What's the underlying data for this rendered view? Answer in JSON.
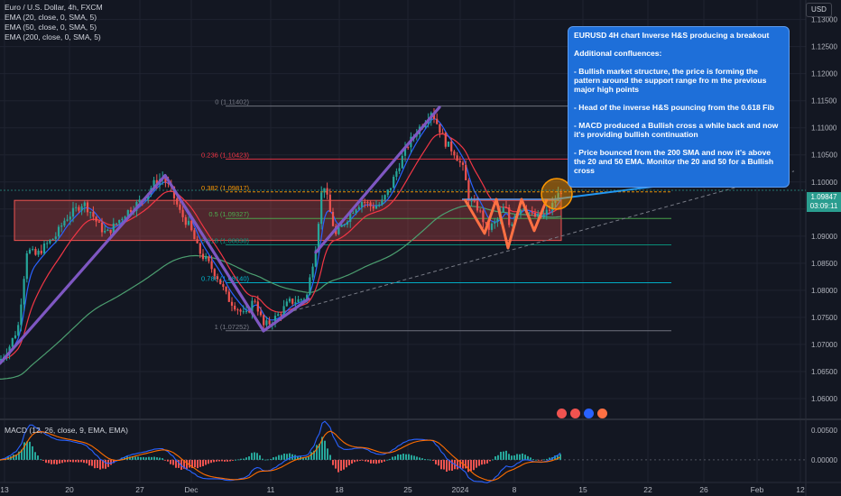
{
  "symbol_title": "Euro / U.S. Dollar, 4h, FXCM",
  "indicators": [
    "EMA (20, close, 0, SMA, 5)",
    "EMA (50, close, 0, SMA, 5)",
    "EMA (200, close, 0, SMA, 5)"
  ],
  "macd_label": "MACD (12, 26, close, 9, EMA, EMA)",
  "currency_button": "USD",
  "last_price": "1.09847",
  "countdown": "03:09:11",
  "annotation": {
    "title": "EURUSD 4H chart Inverse H&S producing a breakout",
    "subtitle": "Additional confluences:",
    "points": [
      "- Bullish market structure, the price is forming the pattern around the support range fro m the previous major high points",
      "- Head of the inverse H&S pouncing from the 0.618 Fib",
      "- MACD produced a Bullish cross a while back and now it's providing bullish continuation",
      "- Price bounced from the 200 SMA and now it's above the 20 and 50 EMA. Monitor the 20 and 50 for a Bullish cross"
    ]
  },
  "colors": {
    "background": "#131722",
    "up": "#26a69a",
    "down": "#ef5350",
    "ema20": "#2962ff",
    "ema50": "#f23645",
    "ema200": "#4c9f70",
    "trend": "#7e57c2",
    "pattern": "#ff7043",
    "annotation": "#1e6fd9"
  },
  "chart_data": [
    {
      "type": "candlestick",
      "title": "Euro / U.S. Dollar, 4h, FXCM",
      "x_ticks": [
        "13",
        "20",
        "27",
        "Dec",
        "11",
        "18",
        "25",
        "2024",
        "8",
        "15",
        "22",
        "26",
        "Feb",
        "12"
      ],
      "y_ticks": [
        "1.13000",
        "1.12500",
        "1.12000",
        "1.11500",
        "1.11000",
        "1.10500",
        "1.10000",
        "1.09500",
        "1.09000",
        "1.08500",
        "1.08000",
        "1.07500",
        "1.07000",
        "1.06500",
        "1.06000"
      ],
      "ylim": [
        1.0565,
        1.1336
      ],
      "fibonacci": [
        {
          "label": "0 (1.11402)",
          "value": 1.11402
        },
        {
          "label": "0.236 (1.10423)",
          "value": 1.10423
        },
        {
          "label": "0.382 (1.09817)",
          "value": 1.09817
        },
        {
          "label": "0.5 (1.09327)",
          "value": 1.09327
        },
        {
          "label": "0.618 (1.08838)",
          "value": 1.08838
        },
        {
          "label": "0.786 (1.08140)",
          "value": 1.0814
        },
        {
          "label": "1 (1.07252)",
          "value": 1.07252
        }
      ],
      "support_zone": [
        1.0892,
        1.0966
      ],
      "close_path": [
        [
          0,
          1.0671
        ],
        [
          10,
          1.0695
        ],
        [
          20,
          1.0732
        ],
        [
          30,
          1.0876
        ],
        [
          40,
          1.0864
        ],
        [
          50,
          1.0882
        ],
        [
          62,
          1.0901
        ],
        [
          72,
          1.0931
        ],
        [
          82,
          1.0946
        ],
        [
          92,
          1.0962
        ],
        [
          100,
          1.0946
        ],
        [
          110,
          1.0918
        ],
        [
          118,
          1.0904
        ],
        [
          128,
          1.0922
        ],
        [
          138,
          1.0941
        ],
        [
          150,
          1.0957
        ],
        [
          160,
          1.0972
        ],
        [
          170,
          1.0996
        ],
        [
          180,
          1.1009
        ],
        [
          190,
          1.0983
        ],
        [
          200,
          1.0942
        ],
        [
          210,
          1.0918
        ],
        [
          220,
          1.0873
        ],
        [
          232,
          1.0847
        ],
        [
          242,
          1.0822
        ],
        [
          252,
          1.0786
        ],
        [
          262,
          1.0769
        ],
        [
          272,
          1.0751
        ],
        [
          282,
          1.0786
        ],
        [
          292,
          1.0734
        ],
        [
          300,
          1.0741
        ],
        [
          310,
          1.0757
        ],
        [
          320,
          1.0778
        ],
        [
          330,
          1.0781
        ],
        [
          340,
          1.0789
        ],
        [
          350,
          1.0884
        ],
        [
          358,
          1.1005
        ],
        [
          366,
          1.0942
        ],
        [
          372,
          1.0901
        ],
        [
          382,
          1.0926
        ],
        [
          392,
          1.0951
        ],
        [
          402,
          1.0966
        ],
        [
          412,
          1.0954
        ],
        [
          422,
          1.0959
        ],
        [
          432,
          1.0988
        ],
        [
          442,
          1.1031
        ],
        [
          452,
          1.1068
        ],
        [
          462,
          1.1094
        ],
        [
          472,
          1.1116
        ],
        [
          478,
          1.1132
        ],
        [
          486,
          1.1102
        ],
        [
          494,
          1.1072
        ],
        [
          504,
          1.1054
        ],
        [
          514,
          1.1021
        ],
        [
          520,
          1.0965
        ],
        [
          530,
          1.0951
        ],
        [
          540,
          1.0912
        ],
        [
          550,
          1.0926
        ],
        [
          560,
          1.0957
        ],
        [
          565,
          1.0914
        ],
        [
          570,
          1.0941
        ],
        [
          580,
          1.0956
        ],
        [
          590,
          1.0937
        ],
        [
          600,
          1.0934
        ],
        [
          610,
          1.0951
        ],
        [
          622,
          1.0986
        ]
      ]
    },
    {
      "type": "bar",
      "title": "MACD (12, 26, close, 9, EMA, EMA)",
      "y_ticks": [
        "0.00500",
        "0.00000"
      ],
      "ylim": [
        -0.0038,
        0.0065
      ]
    }
  ]
}
